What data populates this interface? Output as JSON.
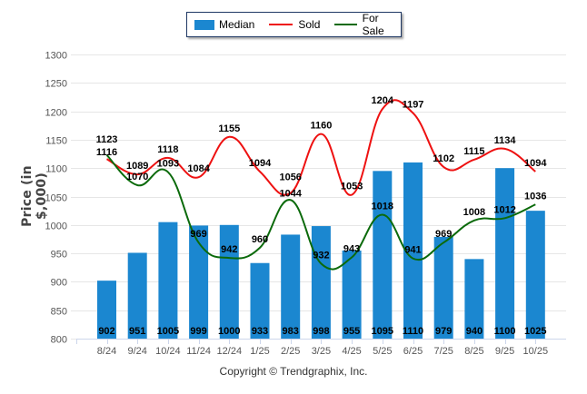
{
  "chart_data": {
    "type": "bar",
    "title": "",
    "xlabel": "",
    "ylabel": "Price (in $,000)",
    "ylim": [
      800,
      1300
    ],
    "yticks": [
      800,
      850,
      900,
      950,
      1000,
      1050,
      1100,
      1150,
      1200,
      1250,
      1300
    ],
    "grid": true,
    "legend_position": "top-center",
    "categories": [
      "8/24",
      "9/24",
      "10/24",
      "11/24",
      "12/24",
      "1/25",
      "2/25",
      "3/25",
      "4/25",
      "5/25",
      "6/25",
      "7/25",
      "8/25",
      "9/25",
      "10/25"
    ],
    "series": [
      {
        "name": "Median",
        "type": "bar",
        "color": "#1b87d0",
        "values": [
          902,
          951,
          1005,
          999,
          1000,
          933,
          983,
          998,
          955,
          1095,
          1110,
          979,
          940,
          1100,
          1025
        ]
      },
      {
        "name": "Sold",
        "type": "line",
        "color": "#ee1111",
        "values": [
          1116,
          1089,
          1118,
          1084,
          1155,
          1094,
          1056,
          1160,
          1053,
          1204,
          1197,
          1102,
          1115,
          1134,
          1094
        ]
      },
      {
        "name": "For Sale",
        "type": "line",
        "color": "#0b6a0b",
        "values": [
          1123,
          1070,
          1093,
          969,
          942,
          960,
          1044,
          932,
          943,
          1018,
          941,
          969,
          1008,
          1012,
          1036
        ]
      }
    ]
  },
  "legend": {
    "median_label": "Median",
    "sold_label": "Sold",
    "forsale_label": "For Sale"
  },
  "footer": {
    "copyright": "Copyright © Trendgraphix, Inc."
  }
}
